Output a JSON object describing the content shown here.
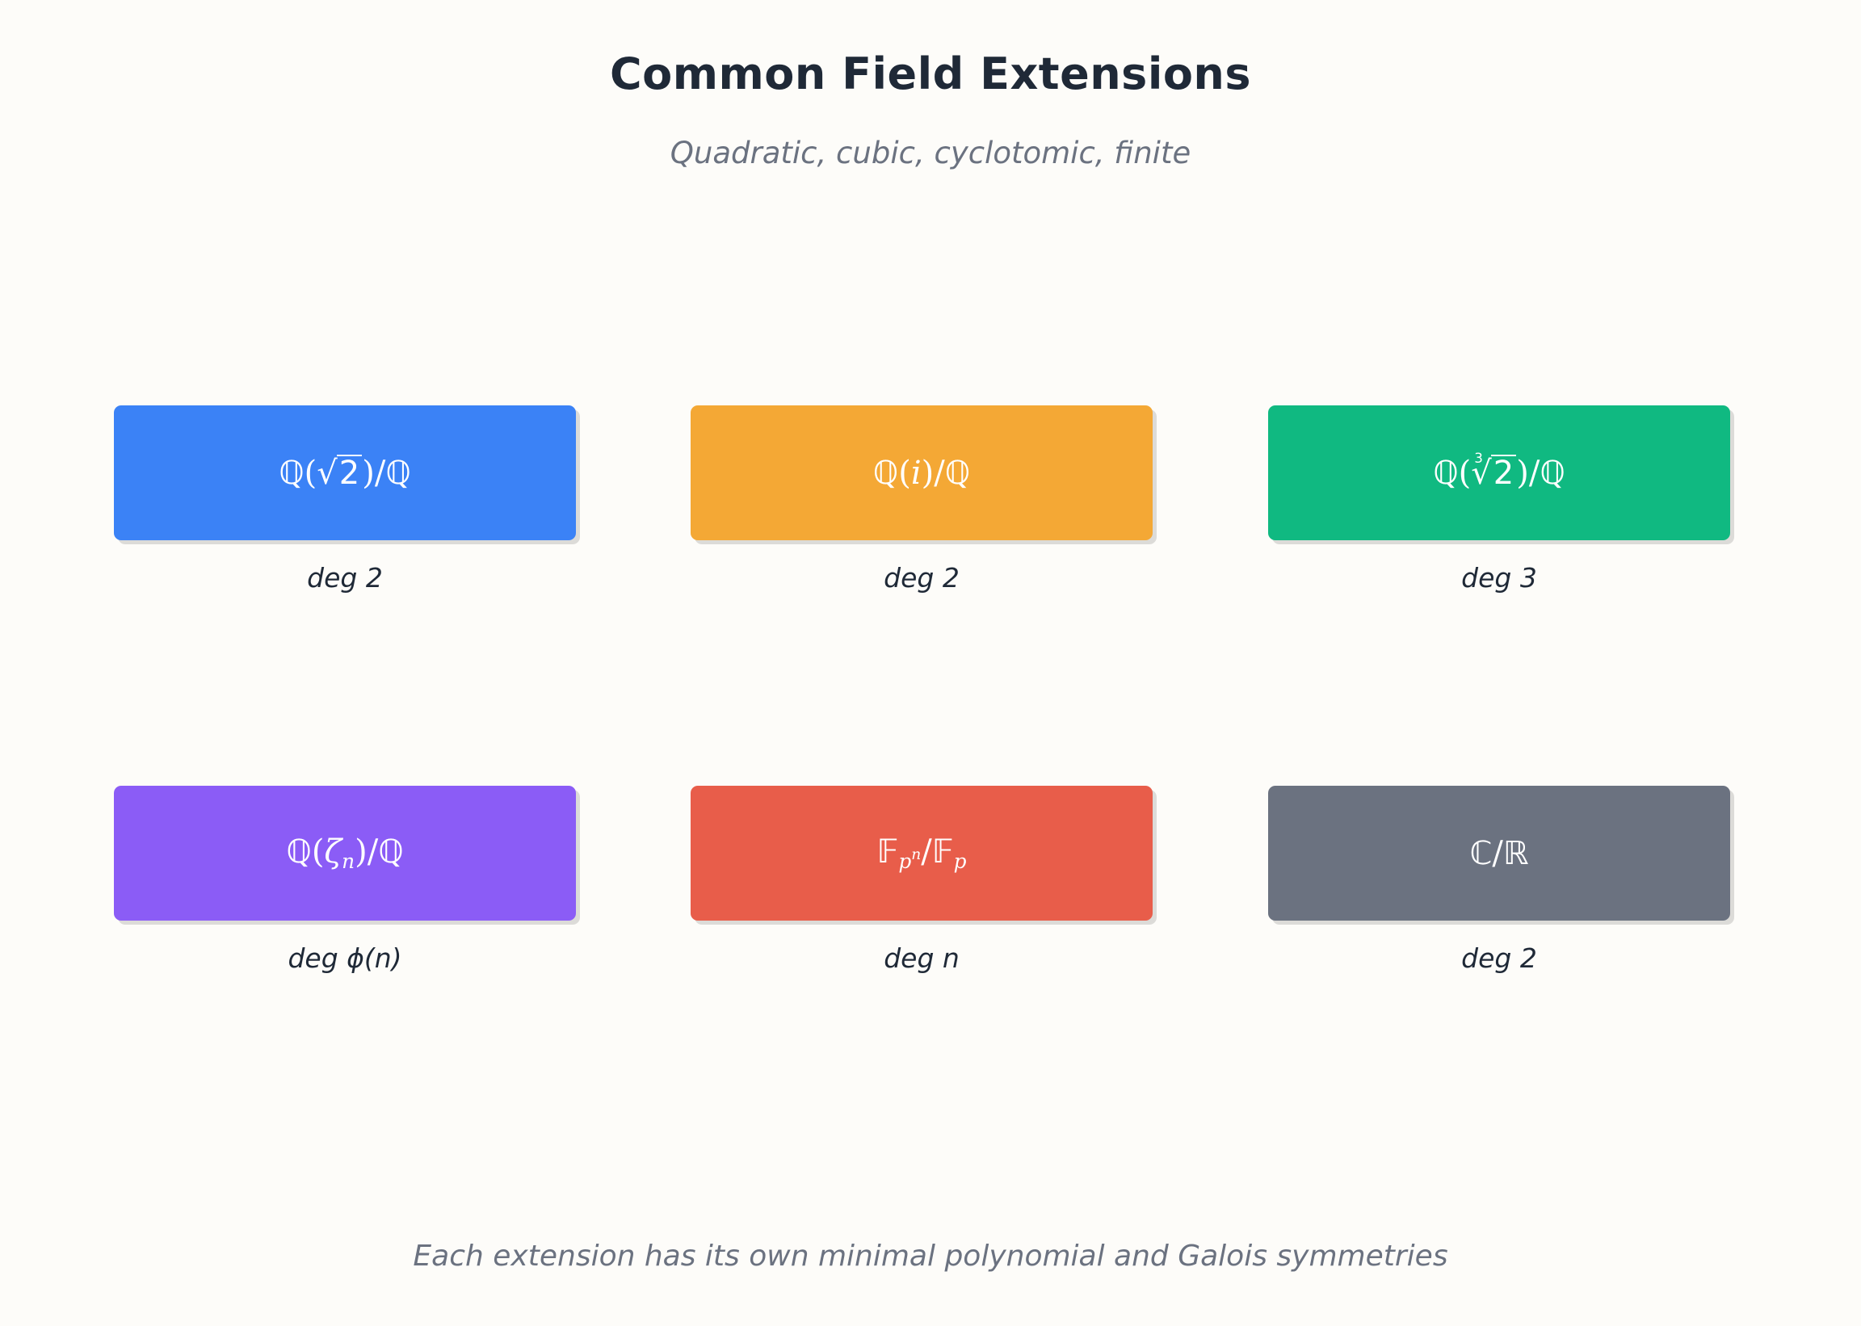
{
  "title": "Common Field Extensions",
  "subtitle": "Quadratic, cubic, cyclotomic, finite",
  "footer": "Each extension has its own minimal polynomial and Galois symmetries",
  "colors": {
    "blue": "#3b82f6",
    "orange": "#f4a835",
    "green": "#10b981",
    "purple": "#8b5cf6",
    "red": "#e85d4a",
    "gray": "#6b7280"
  },
  "extensions": [
    {
      "field": "ℚ(√2)/ℚ",
      "degree": "deg 2",
      "color": "#3b82f6"
    },
    {
      "field": "ℚ(i)/ℚ",
      "degree": "deg 2",
      "color": "#f4a835"
    },
    {
      "field": "ℚ(∛2)/ℚ",
      "degree": "deg 3",
      "color": "#10b981"
    },
    {
      "field": "ℚ(ζₙ)/ℚ",
      "degree": "deg ϕ(n)",
      "color": "#8b5cf6"
    },
    {
      "field": "𝔽ₚⁿ/𝔽ₚ",
      "degree": "deg n",
      "color": "#e85d4a"
    },
    {
      "field": "ℂ/ℝ",
      "degree": "deg 2",
      "color": "#6b7280"
    }
  ]
}
